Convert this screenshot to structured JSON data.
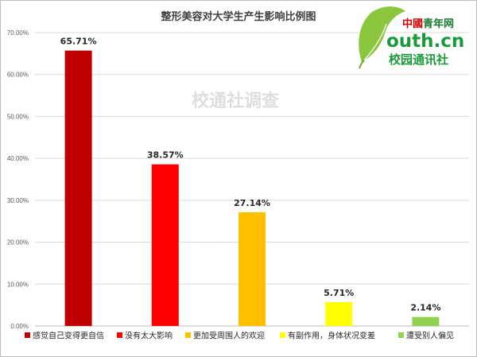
{
  "chart_data": {
    "type": "bar",
    "title": "整形美容对大学生产生影响比例图",
    "categories": [
      "感觉自己变得更自信",
      "没有太大影响",
      "更加受周围人的欢迎",
      "有副作用，身体状况变差",
      "遭受别人偏见"
    ],
    "values": [
      65.71,
      38.57,
      27.14,
      5.71,
      2.14
    ],
    "data_labels": [
      "65.71%",
      "38.57%",
      "27.14%",
      "5.71%",
      "2.14%"
    ],
    "colors": [
      "#c00000",
      "#ff0000",
      "#ffc000",
      "#ffff00",
      "#92d050"
    ],
    "yticks": [
      "0.00%",
      "10.00%",
      "20.00%",
      "30.00%",
      "40.00%",
      "50.00%",
      "60.00%",
      "70.00%"
    ],
    "ylim": [
      0,
      70
    ],
    "grid": true,
    "legend": "bottom",
    "xlabel": "",
    "ylabel": ""
  },
  "watermark": "校通社调查",
  "logo": {
    "top_line_a": "中國",
    "top_line_b": "青年网",
    "url": "outh.cn",
    "bottom_line": "校园通讯社"
  }
}
